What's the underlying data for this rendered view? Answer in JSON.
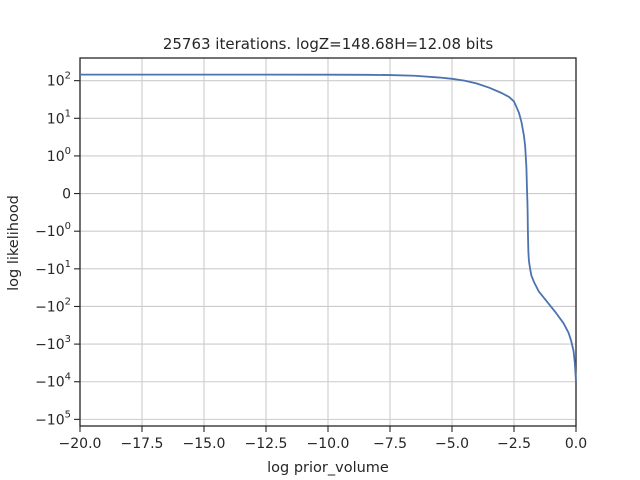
{
  "chart_data": {
    "type": "line",
    "title": "25763 iterations. logZ=148.68H=12.08 bits",
    "xlabel": "log prior_volume",
    "ylabel": "log likelihood",
    "xlim": [
      -20.0,
      0.0
    ],
    "yscale": "symlog",
    "ylim": [
      -150000,
      400
    ],
    "grid": true,
    "x_ticks": [
      {
        "value": -20.0,
        "label": "−20.0"
      },
      {
        "value": -17.5,
        "label": "−17.5"
      },
      {
        "value": -15.0,
        "label": "−15.0"
      },
      {
        "value": -12.5,
        "label": "−12.5"
      },
      {
        "value": -10.0,
        "label": "−10.0"
      },
      {
        "value": -7.5,
        "label": "−7.5"
      },
      {
        "value": -5.0,
        "label": "−5.0"
      },
      {
        "value": -2.5,
        "label": "−2.5"
      },
      {
        "value": 0.0,
        "label": "0.0"
      }
    ],
    "y_ticks": [
      {
        "value": 100,
        "base": "10",
        "exp": "2"
      },
      {
        "value": 10,
        "base": "10",
        "exp": "1"
      },
      {
        "value": 1,
        "base": "10",
        "exp": "0"
      },
      {
        "value": 0,
        "base": "0",
        "exp": ""
      },
      {
        "value": -1,
        "base": "−10",
        "exp": "0"
      },
      {
        "value": -10,
        "base": "−10",
        "exp": "1"
      },
      {
        "value": -100,
        "base": "−10",
        "exp": "2"
      },
      {
        "value": -1000,
        "base": "−10",
        "exp": "3"
      },
      {
        "value": -10000,
        "base": "−10",
        "exp": "4"
      },
      {
        "value": -100000,
        "base": "−10",
        "exp": "5"
      }
    ],
    "series": [
      {
        "color": "#4c72b0",
        "x": [
          -20.0,
          -17.5,
          -15.0,
          -12.5,
          -10.0,
          -8.5,
          -7.5,
          -6.5,
          -5.5,
          -5.0,
          -4.5,
          -4.0,
          -3.5,
          -3.0,
          -2.7,
          -2.5,
          -2.4,
          -2.3,
          -2.2,
          -2.1,
          -2.05,
          -2.0,
          -1.98,
          -1.96,
          -1.95,
          -1.94,
          -1.93,
          -1.92,
          -1.9,
          -1.85,
          -1.8,
          -1.7,
          -1.5,
          -1.2,
          -0.8,
          -0.5,
          -0.3,
          -0.2,
          -0.1,
          -0.05,
          -0.02,
          0.0
        ],
        "y": [
          145,
          145,
          145,
          145,
          144,
          143,
          141,
          135,
          121,
          112,
          100,
          84,
          65,
          47,
          37,
          28,
          20,
          14,
          8,
          3.5,
          1.8,
          0.7,
          0.2,
          -0.2,
          -0.5,
          -1.0,
          -2.0,
          -3.5,
          -6.0,
          -10.0,
          -15.0,
          -22,
          -40,
          -70,
          -150,
          -280,
          -500,
          -800,
          -1500,
          -3000,
          -6000,
          -10000
        ]
      }
    ]
  }
}
